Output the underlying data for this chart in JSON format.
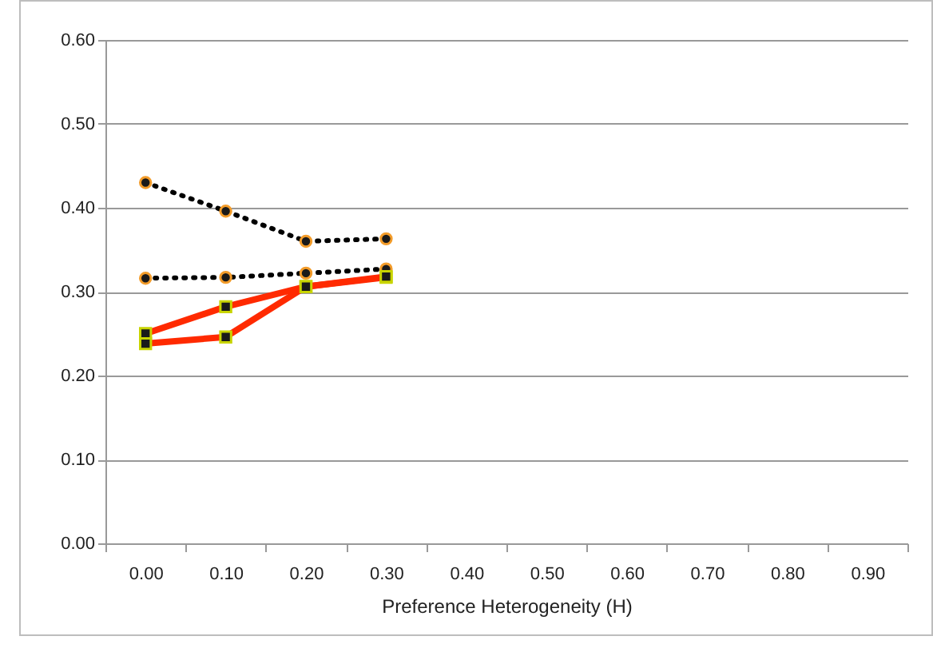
{
  "chart_data": {
    "type": "line",
    "xlabel": "Preference Heterogeneity (H)",
    "categories": [
      "0.00",
      "0.10",
      "0.20",
      "0.30",
      "0.40",
      "0.50",
      "0.60",
      "0.70",
      "0.80",
      "0.90"
    ],
    "series": [
      {
        "color": "#000000",
        "line_style": "dotted",
        "marker": "circle",
        "values": [
          0.43,
          0.396,
          0.36,
          0.363,
          null,
          null,
          null,
          null,
          null,
          null
        ]
      },
      {
        "color": "#000000",
        "line_style": "dotted",
        "marker": "circle",
        "values": [
          0.316,
          0.317,
          0.322,
          0.327,
          null,
          null,
          null,
          null,
          null,
          null
        ]
      },
      {
        "color": "#ff2a00",
        "line_style": "solid",
        "marker": "square",
        "values": [
          0.25,
          0.282,
          0.306,
          0.317,
          null,
          null,
          null,
          null,
          null,
          null
        ]
      },
      {
        "color": "#ff2a00",
        "line_style": "solid",
        "marker": "square",
        "values": [
          0.238,
          0.246,
          0.306,
          0.318,
          null,
          null,
          null,
          null,
          null,
          null
        ]
      }
    ],
    "ylim": [
      0,
      0.6
    ],
    "yticks": [
      {
        "value": 0,
        "label": "0.00"
      },
      {
        "value": 0.1,
        "label": "0.10"
      },
      {
        "value": 0.2,
        "label": "0.20"
      },
      {
        "value": 0.3,
        "label": "0.30"
      },
      {
        "value": 0.4,
        "label": "0.40"
      },
      {
        "value": 0.5,
        "label": "0.50"
      },
      {
        "value": 0.6,
        "label": "0.60"
      }
    ],
    "grid": "y"
  }
}
